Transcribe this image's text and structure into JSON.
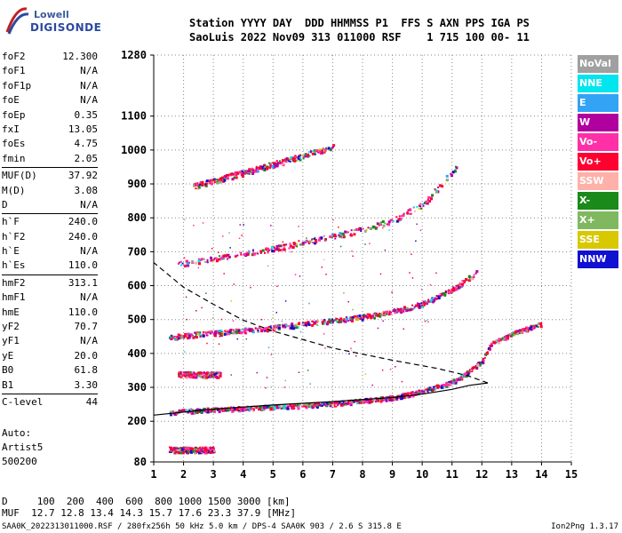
{
  "logo": {
    "line1": "Lowell",
    "line2": "DIGISONDE"
  },
  "header": {
    "line1": "Station YYYY DAY  DDD HHMMSS P1  FFS S AXN PPS IGA PS",
    "line2": "SaoLuis 2022 Nov09 313 011000 RSF    1 715 100 00- 11"
  },
  "params": [
    [
      {
        "k": "foF2",
        "v": "12.300"
      },
      {
        "k": "foF1",
        "v": "N/A"
      },
      {
        "k": "foF1p",
        "v": "N/A"
      },
      {
        "k": "foE",
        "v": "N/A"
      },
      {
        "k": "foEp",
        "v": "0.35"
      },
      {
        "k": "fxI",
        "v": "13.05"
      },
      {
        "k": "foEs",
        "v": "4.75"
      },
      {
        "k": "fmin",
        "v": "2.05"
      }
    ],
    [
      {
        "k": "MUF(D)",
        "v": "37.92"
      },
      {
        "k": "M(D)",
        "v": "3.08"
      },
      {
        "k": "D",
        "v": "N/A"
      }
    ],
    [
      {
        "k": "h`F",
        "v": "240.0"
      },
      {
        "k": "h`F2",
        "v": "240.0"
      },
      {
        "k": "h`E",
        "v": "N/A"
      },
      {
        "k": "h`Es",
        "v": "110.0"
      }
    ],
    [
      {
        "k": "hmF2",
        "v": "313.1"
      },
      {
        "k": "hmF1",
        "v": "N/A"
      },
      {
        "k": "hmE",
        "v": "110.0"
      },
      {
        "k": "yF2",
        "v": "70.7"
      },
      {
        "k": "yF1",
        "v": "N/A"
      },
      {
        "k": "yE",
        "v": "20.0"
      },
      {
        "k": "B0",
        "v": "61.8"
      },
      {
        "k": "B1",
        "v": "3.30"
      }
    ],
    [
      {
        "k": "C-level",
        "v": "44"
      }
    ]
  ],
  "auto": {
    "line1": "Auto:",
    "line2": "Artist5",
    "line3": "500200"
  },
  "legend": [
    {
      "label": "NoVal",
      "color": "#a0a0a0"
    },
    {
      "label": "NNE",
      "color": "#00e5ee"
    },
    {
      "label": "E",
      "color": "#33a3f5"
    },
    {
      "label": "W",
      "color": "#b0009e"
    },
    {
      "label": "Vo-",
      "color": "#ff2fa8"
    },
    {
      "label": "Vo+",
      "color": "#ff0030"
    },
    {
      "label": "SSW",
      "color": "#ffb0a8"
    },
    {
      "label": "X-",
      "color": "#1a8a1a"
    },
    {
      "label": "X+",
      "color": "#80b860"
    },
    {
      "label": "SSE",
      "color": "#d8c800"
    },
    {
      "label": "NNW",
      "color": "#1010d0"
    }
  ],
  "bottom": {
    "line1": "D     100  200  400  600  800 1000 1500 3000 [km]",
    "line2": "MUF  12.7 12.8 13.4 14.3 15.7 17.6 23.3 37.9 [MHz]"
  },
  "footer": {
    "left": "SAA0K_2022313011000.RSF / 280fx256h 50 kHz 5.0 km / DPS-4 SAA0K 903 / 2.6 S 315.8 E",
    "right": "Ion2Png 1.3.17"
  },
  "chart_data": {
    "type": "scatter",
    "xlim": [
      1,
      15
    ],
    "ylim": [
      80,
      1280
    ],
    "x_ticks": [
      1,
      2,
      3,
      4,
      5,
      6,
      7,
      8,
      9,
      10,
      11,
      12,
      13,
      14,
      15
    ],
    "y_ticks": [
      80,
      200,
      300,
      400,
      500,
      600,
      700,
      800,
      900,
      1000,
      1100,
      1280
    ],
    "grid": true,
    "traces": [
      {
        "name": "F2 trace",
        "points": [
          [
            1.5,
            228
          ],
          [
            2,
            232
          ],
          [
            3,
            236
          ],
          [
            4,
            240
          ],
          [
            5,
            244
          ],
          [
            6,
            248
          ],
          [
            7,
            254
          ],
          [
            8,
            262
          ],
          [
            9,
            272
          ],
          [
            10,
            290
          ],
          [
            11,
            318
          ],
          [
            11.5,
            345
          ],
          [
            12,
            380
          ],
          [
            12.3,
            430
          ],
          [
            13,
            460
          ],
          [
            14,
            490
          ]
        ]
      },
      {
        "name": "2nd hop",
        "points": [
          [
            1.5,
            450
          ],
          [
            2,
            455
          ],
          [
            3,
            462
          ],
          [
            4,
            470
          ],
          [
            5,
            478
          ],
          [
            6,
            488
          ],
          [
            7,
            498
          ],
          [
            8,
            510
          ],
          [
            9,
            525
          ],
          [
            10,
            548
          ],
          [
            11,
            590
          ],
          [
            11.8,
            640
          ]
        ]
      },
      {
        "name": "3rd hop",
        "points": [
          [
            1.8,
            665
          ],
          [
            3,
            680
          ],
          [
            4,
            695
          ],
          [
            5,
            710
          ],
          [
            6,
            730
          ],
          [
            7,
            748
          ],
          [
            8,
            768
          ],
          [
            9,
            795
          ],
          [
            10,
            840
          ],
          [
            10.5,
            890
          ],
          [
            11.2,
            960
          ]
        ]
      },
      {
        "name": "4th hop",
        "points": [
          [
            2.3,
            895
          ],
          [
            3,
            912
          ],
          [
            4,
            935
          ],
          [
            5,
            960
          ],
          [
            6,
            985
          ],
          [
            7,
            1010
          ]
        ]
      },
      {
        "name": "Es",
        "points": [
          [
            1.5,
            118
          ],
          [
            2,
            118
          ],
          [
            3,
            118
          ]
        ]
      },
      {
        "name": "Es 2nd",
        "points": [
          [
            1.8,
            340
          ],
          [
            2.5,
            340
          ],
          [
            3.2,
            340
          ]
        ]
      }
    ],
    "profile": [
      [
        1,
        218
      ],
      [
        3,
        236
      ],
      [
        5,
        248
      ],
      [
        7,
        258
      ],
      [
        9,
        270
      ],
      [
        10,
        280
      ],
      [
        11,
        294
      ],
      [
        11.6,
        306
      ],
      [
        12.2,
        313
      ]
    ],
    "profile_dashed": [
      [
        12.2,
        313
      ],
      [
        11.5,
        335
      ],
      [
        10.5,
        356
      ],
      [
        9,
        380
      ],
      [
        7,
        416
      ],
      [
        5,
        466
      ],
      [
        4,
        498
      ],
      [
        3,
        545
      ],
      [
        2,
        595
      ],
      [
        1,
        668
      ]
    ]
  }
}
